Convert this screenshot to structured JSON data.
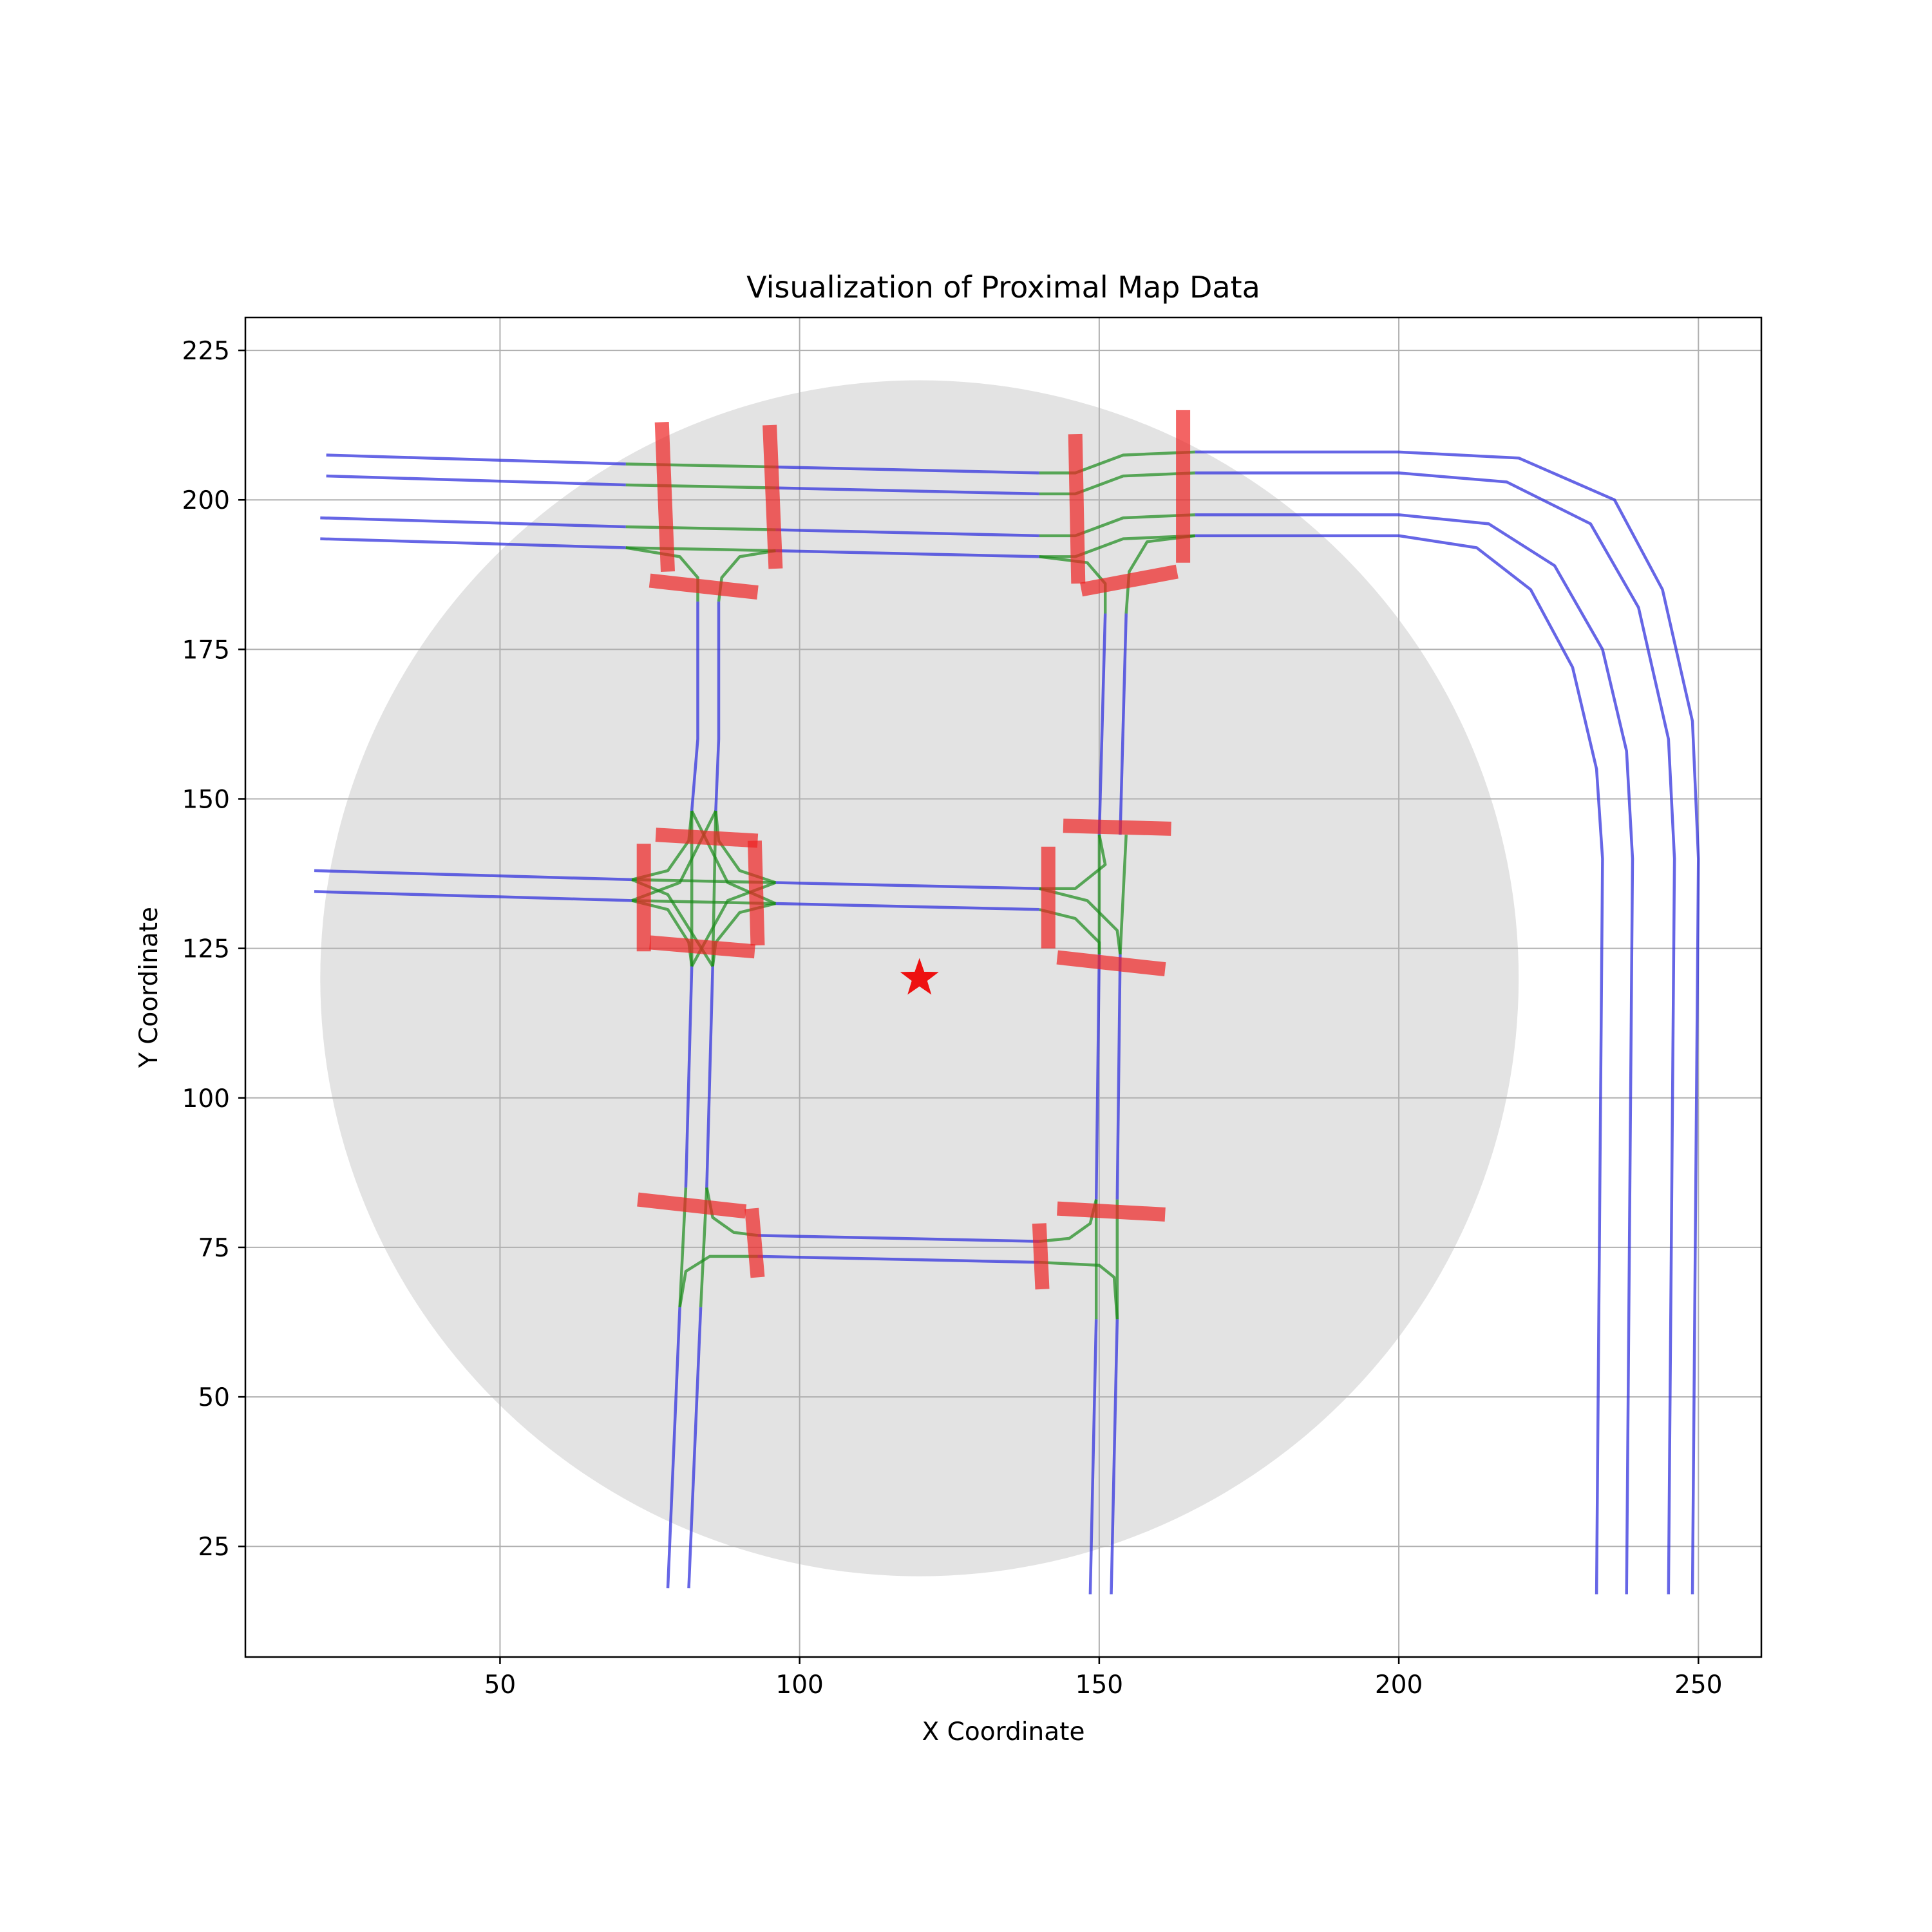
{
  "chart_data": {
    "type": "map",
    "title": "Visualization of Proximal Map Data",
    "xlabel": "X Coordinate",
    "ylabel": "Y Coordinate",
    "xlim": [
      7.5,
      260.5
    ],
    "ylim": [
      6.5,
      230.5
    ],
    "xticks": [
      50,
      100,
      150,
      200,
      250
    ],
    "yticks": [
      25,
      50,
      75,
      100,
      125,
      150,
      175,
      200,
      225
    ],
    "grid": true,
    "colors": {
      "lane": "#3333dd",
      "connector": "#1a8a1a",
      "crosswalk": "#ee2222",
      "region": "#e3e3e3",
      "ego": "#ee1111"
    },
    "query_region": {
      "center": [
        120,
        120
      ],
      "radius": 100
    },
    "ego_position": [
      120,
      120
    ],
    "lanes": [
      [
        [
          21,
          207.5
        ],
        [
          71,
          206
        ]
      ],
      [
        [
          21,
          204
        ],
        [
          71,
          202.5
        ]
      ],
      [
        [
          20,
          197
        ],
        [
          71,
          195.5
        ]
      ],
      [
        [
          20,
          193.5
        ],
        [
          71,
          192
        ]
      ],
      [
        [
          96,
          205.5
        ],
        [
          140,
          204.5
        ]
      ],
      [
        [
          96,
          202
        ],
        [
          140,
          201
        ]
      ],
      [
        [
          96,
          195
        ],
        [
          140,
          194
        ]
      ],
      [
        [
          96,
          191.5
        ],
        [
          140,
          190.5
        ]
      ],
      [
        [
          166,
          208
        ],
        [
          200,
          208
        ],
        [
          220,
          207
        ],
        [
          236,
          200
        ],
        [
          244,
          185
        ],
        [
          249,
          163
        ],
        [
          250,
          140
        ],
        [
          249,
          17
        ]
      ],
      [
        [
          166,
          204.5
        ],
        [
          200,
          204.5
        ],
        [
          218,
          203
        ],
        [
          232,
          196
        ],
        [
          240,
          182
        ],
        [
          245,
          160
        ],
        [
          246,
          140
        ],
        [
          245,
          17
        ]
      ],
      [
        [
          166,
          197.5
        ],
        [
          200,
          197.5
        ],
        [
          215,
          196
        ],
        [
          226,
          189
        ],
        [
          234,
          175
        ],
        [
          238,
          158
        ],
        [
          239,
          140
        ],
        [
          238,
          17
        ]
      ],
      [
        [
          166,
          194
        ],
        [
          200,
          194
        ],
        [
          213,
          192
        ],
        [
          222,
          185
        ],
        [
          229,
          172
        ],
        [
          233,
          155
        ],
        [
          234,
          140
        ],
        [
          233,
          17
        ]
      ],
      [
        [
          19,
          138
        ],
        [
          72,
          136.5
        ]
      ],
      [
        [
          19,
          134.5
        ],
        [
          72,
          133
        ]
      ],
      [
        [
          96,
          136
        ],
        [
          140,
          135
        ]
      ],
      [
        [
          96,
          132.5
        ],
        [
          140,
          131.5
        ]
      ],
      [
        [
          93,
          77
        ],
        [
          140,
          76
        ]
      ],
      [
        [
          93,
          73.5
        ],
        [
          140,
          72.5
        ]
      ],
      [
        [
          83,
          183
        ],
        [
          83,
          160
        ],
        [
          82,
          148
        ]
      ],
      [
        [
          86.5,
          183
        ],
        [
          86.5,
          160
        ],
        [
          86,
          148
        ]
      ],
      [
        [
          82,
          122
        ],
        [
          81,
          85
        ]
      ],
      [
        [
          85.5,
          122
        ],
        [
          84.5,
          85
        ]
      ],
      [
        [
          80,
          65
        ],
        [
          78,
          18
        ]
      ],
      [
        [
          83.5,
          65
        ],
        [
          81.5,
          18
        ]
      ],
      [
        [
          151,
          181
        ],
        [
          150,
          144
        ]
      ],
      [
        [
          154.5,
          181
        ],
        [
          153.5,
          144
        ]
      ],
      [
        [
          150,
          124
        ],
        [
          149.5,
          83
        ]
      ],
      [
        [
          153.5,
          124
        ],
        [
          153,
          83
        ]
      ],
      [
        [
          149.5,
          63
        ],
        [
          148.5,
          17
        ]
      ],
      [
        [
          153,
          63
        ],
        [
          152,
          17
        ]
      ]
    ],
    "connectors": [
      [
        [
          71,
          206
        ],
        [
          96,
          205.5
        ]
      ],
      [
        [
          71,
          202.5
        ],
        [
          96,
          202
        ]
      ],
      [
        [
          71,
          195.5
        ],
        [
          96,
          195
        ]
      ],
      [
        [
          71,
          192
        ],
        [
          96,
          191.5
        ]
      ],
      [
        [
          71,
          192
        ],
        [
          80,
          190.5
        ],
        [
          83,
          187
        ],
        [
          83,
          183
        ]
      ],
      [
        [
          96,
          191.5
        ],
        [
          90,
          190.5
        ],
        [
          87,
          187
        ],
        [
          86.5,
          183
        ]
      ],
      [
        [
          140,
          204.5
        ],
        [
          146,
          204.5
        ],
        [
          154,
          207.5
        ],
        [
          166,
          208
        ]
      ],
      [
        [
          140,
          201
        ],
        [
          146,
          201
        ],
        [
          154,
          204
        ],
        [
          166,
          204.5
        ]
      ],
      [
        [
          140,
          194
        ],
        [
          146,
          194
        ],
        [
          154,
          197
        ],
        [
          166,
          197.5
        ]
      ],
      [
        [
          140,
          190.5
        ],
        [
          146,
          190.5
        ],
        [
          154,
          193.5
        ],
        [
          166,
          194
        ]
      ],
      [
        [
          140,
          190.5
        ],
        [
          148,
          189.5
        ],
        [
          151,
          186
        ],
        [
          151,
          181
        ]
      ],
      [
        [
          166,
          194
        ],
        [
          158,
          193
        ],
        [
          155,
          188
        ],
        [
          154.5,
          181
        ]
      ],
      [
        [
          72,
          136.5
        ],
        [
          96,
          136
        ]
      ],
      [
        [
          72,
          133
        ],
        [
          96,
          132.5
        ]
      ],
      [
        [
          82,
          148
        ],
        [
          82,
          122
        ]
      ],
      [
        [
          86,
          148
        ],
        [
          85.5,
          122
        ]
      ],
      [
        [
          72,
          136.5
        ],
        [
          78,
          138
        ],
        [
          81.5,
          143
        ],
        [
          82,
          148
        ]
      ],
      [
        [
          72,
          133
        ],
        [
          78,
          131.5
        ],
        [
          81.5,
          126
        ],
        [
          82,
          122
        ]
      ],
      [
        [
          96,
          136
        ],
        [
          90,
          138
        ],
        [
          86.5,
          143
        ],
        [
          86,
          148
        ]
      ],
      [
        [
          96,
          132.5
        ],
        [
          90,
          131
        ],
        [
          86,
          126
        ],
        [
          85.5,
          122
        ]
      ],
      [
        [
          82,
          148
        ],
        [
          88,
          136
        ],
        [
          96,
          132.5
        ]
      ],
      [
        [
          86,
          148
        ],
        [
          80,
          136
        ],
        [
          72,
          133
        ]
      ],
      [
        [
          82,
          122
        ],
        [
          88,
          133
        ],
        [
          96,
          136
        ]
      ],
      [
        [
          85.5,
          122
        ],
        [
          78,
          134
        ],
        [
          72,
          136.5
        ]
      ],
      [
        [
          140,
          135
        ],
        [
          146,
          135
        ],
        [
          151,
          139
        ],
        [
          150,
          144
        ]
      ],
      [
        [
          140,
          131.5
        ],
        [
          146,
          130
        ],
        [
          150,
          126
        ],
        [
          150,
          124
        ]
      ],
      [
        [
          140,
          135
        ],
        [
          148,
          133
        ],
        [
          153,
          128
        ],
        [
          153.5,
          124
        ]
      ],
      [
        [
          150,
          124
        ],
        [
          150,
          144
        ]
      ],
      [
        [
          153.5,
          124
        ],
        [
          154.5,
          144
        ]
      ],
      [
        [
          81,
          85
        ],
        [
          80,
          65
        ]
      ],
      [
        [
          84.5,
          85
        ],
        [
          83.5,
          65
        ]
      ],
      [
        [
          84.5,
          85
        ],
        [
          85.5,
          80
        ],
        [
          89,
          77.5
        ],
        [
          93,
          77
        ]
      ],
      [
        [
          80,
          65
        ],
        [
          81,
          71
        ],
        [
          85,
          73.5
        ],
        [
          93,
          73.5
        ]
      ],
      [
        [
          140,
          76
        ],
        [
          145,
          76.5
        ],
        [
          148.5,
          79
        ],
        [
          149.5,
          83
        ]
      ],
      [
        [
          140,
          72.5
        ],
        [
          150,
          72
        ],
        [
          152.5,
          70
        ],
        [
          153,
          63
        ]
      ],
      [
        [
          149.5,
          83
        ],
        [
          149.5,
          63
        ]
      ],
      [
        [
          153,
          83
        ],
        [
          153,
          63
        ]
      ]
    ],
    "crosswalks": [
      [
        [
          77,
          213
        ],
        [
          78,
          188
        ]
      ],
      [
        [
          95,
          212.5
        ],
        [
          96,
          188.5
        ]
      ],
      [
        [
          75,
          186.5
        ],
        [
          93,
          184.5
        ]
      ],
      [
        [
          146,
          211
        ],
        [
          146.5,
          186
        ]
      ],
      [
        [
          164,
          215
        ],
        [
          164,
          189.5
        ]
      ],
      [
        [
          147,
          185
        ],
        [
          163,
          188
        ]
      ],
      [
        [
          74,
          142.5
        ],
        [
          74,
          124.5
        ]
      ],
      [
        [
          92.5,
          143
        ],
        [
          93,
          125.5
        ]
      ],
      [
        [
          76,
          144
        ],
        [
          93,
          143
        ]
      ],
      [
        [
          75,
          126
        ],
        [
          92.5,
          124.5
        ]
      ],
      [
        [
          141.5,
          142
        ],
        [
          141.5,
          125
        ]
      ],
      [
        [
          144,
          145.5
        ],
        [
          162,
          145
        ]
      ],
      [
        [
          143,
          123.5
        ],
        [
          161,
          121.5
        ]
      ],
      [
        [
          73,
          83
        ],
        [
          91,
          81
        ]
      ],
      [
        [
          92,
          81.5
        ],
        [
          93,
          70
        ]
      ],
      [
        [
          140,
          79
        ],
        [
          140.5,
          68
        ]
      ],
      [
        [
          143,
          81.5
        ],
        [
          161,
          80.5
        ]
      ]
    ]
  }
}
